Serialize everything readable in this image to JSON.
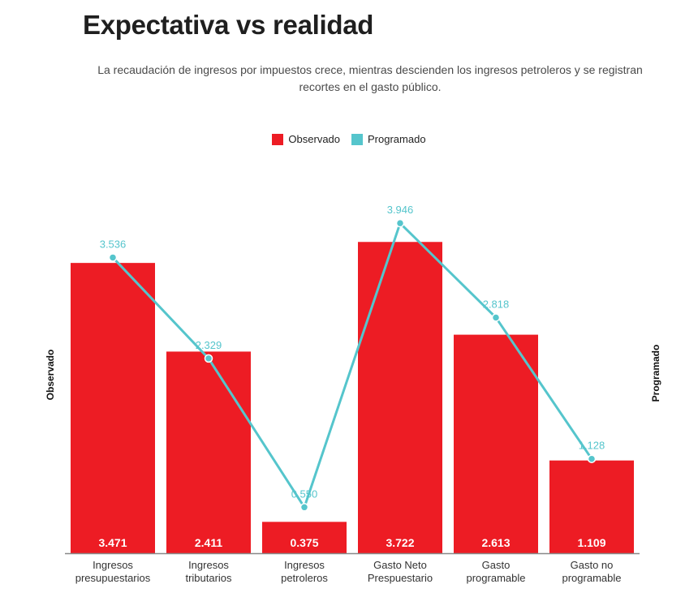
{
  "chart_data": {
    "type": "bar",
    "title": "Expectativa vs realidad",
    "subtitle": "La recaudación de ingresos por impuestos crece, mientras descienden los ingresos petroleros y se registran recortes en el gasto público.",
    "categories": [
      [
        "Ingresos",
        "presupuestarios"
      ],
      [
        "Ingresos",
        "tributarios"
      ],
      [
        "Ingresos",
        "petroleros"
      ],
      [
        "Gasto Neto",
        "Prespuestario"
      ],
      [
        "Gasto",
        "programable"
      ],
      [
        "Gasto no",
        "programable"
      ]
    ],
    "series": [
      {
        "name": "Observado",
        "type": "bar",
        "color": "#ed1c24",
        "values": [
          3.471,
          2.411,
          0.375,
          3.722,
          2.613,
          1.109
        ],
        "labels": [
          "3.471",
          "2.411",
          "0.375",
          "3.722",
          "2.613",
          "1.109"
        ]
      },
      {
        "name": "Programado",
        "type": "line",
        "color": "#55c5cc",
        "values": [
          3.536,
          2.329,
          0.55,
          3.946,
          2.818,
          1.128
        ],
        "labels": [
          "3.536",
          "2.329",
          "0.550",
          "3.946",
          "2.818",
          "1.128"
        ]
      }
    ],
    "ylabel_left": "Observado",
    "ylabel_right": "Programado",
    "ylim": [
      0,
      4.5
    ],
    "grid": false,
    "legend": "top-center"
  }
}
